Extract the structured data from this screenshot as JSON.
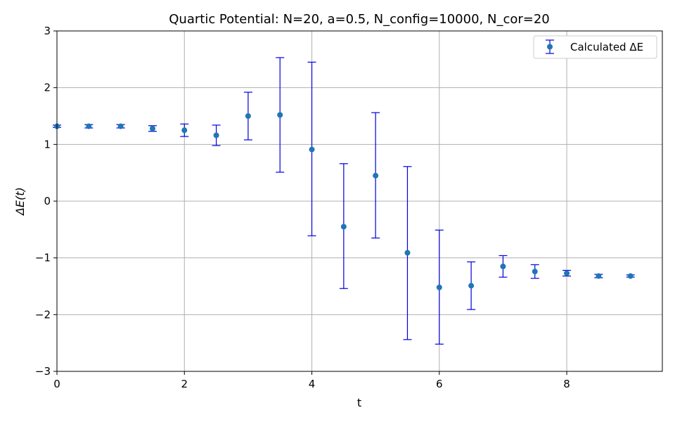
{
  "chart_data": {
    "type": "scatter",
    "title": "Quartic Potential: N=20, a=0.5, N_config=10000, N_cor=20",
    "xlabel": "t",
    "ylabel": "ΔE(t)",
    "xlim": [
      0,
      9.5
    ],
    "ylim": [
      -3,
      3
    ],
    "xticks": [
      0,
      2,
      4,
      6,
      8
    ],
    "yticks": [
      -3,
      -2,
      -1,
      0,
      1,
      2,
      3
    ],
    "xtick_labels": [
      "0",
      "2",
      "4",
      "6",
      "8"
    ],
    "ytick_labels": [
      "−3",
      "−2",
      "−1",
      "0",
      "1",
      "2",
      "3"
    ],
    "grid": true,
    "legend": {
      "position": "top-right",
      "entries": [
        "Calculated ΔE"
      ]
    },
    "colors": {
      "marker": "#1f77b4",
      "errorbar": "#0000dd"
    },
    "series": [
      {
        "name": "Calculated ΔE",
        "x": [
          0,
          0.5,
          1.0,
          1.5,
          2.0,
          2.5,
          3.0,
          3.5,
          4.0,
          4.5,
          5.0,
          5.5,
          6.0,
          6.5,
          7.0,
          7.5,
          8.0,
          8.5,
          9.0
        ],
        "y": [
          1.32,
          1.32,
          1.32,
          1.28,
          1.25,
          1.16,
          1.5,
          1.52,
          0.91,
          -0.45,
          0.45,
          -0.91,
          -1.52,
          -1.49,
          -1.15,
          -1.24,
          -1.27,
          -1.32,
          -1.32
        ],
        "yerr_low": [
          0.02,
          0.03,
          0.03,
          0.05,
          0.11,
          0.18,
          0.42,
          1.01,
          1.52,
          1.09,
          1.1,
          1.53,
          1.0,
          0.42,
          0.19,
          0.12,
          0.05,
          0.03,
          0.02
        ],
        "yerr_high": [
          0.02,
          0.03,
          0.03,
          0.05,
          0.11,
          0.18,
          0.42,
          1.01,
          1.54,
          1.11,
          1.11,
          1.52,
          1.01,
          0.42,
          0.19,
          0.12,
          0.05,
          0.03,
          0.02
        ]
      }
    ]
  }
}
